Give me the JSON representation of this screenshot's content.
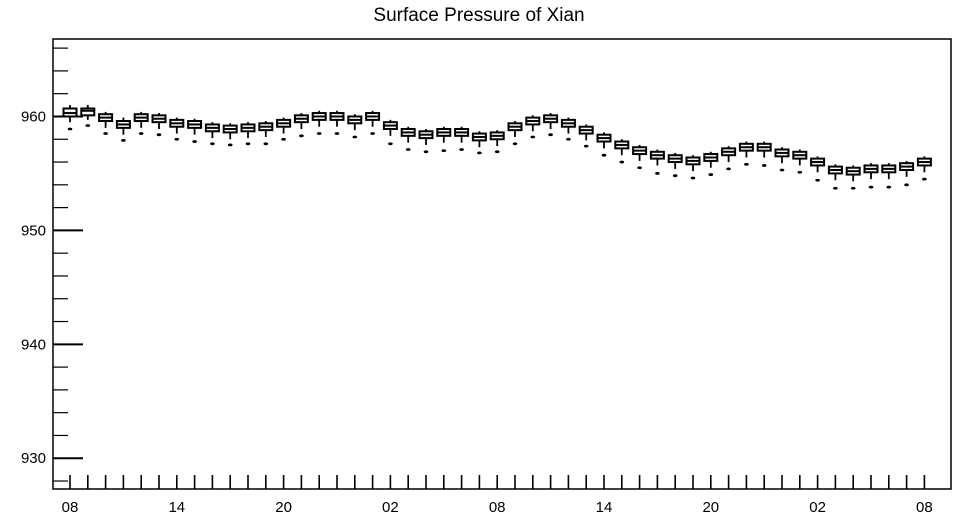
{
  "chart_data": {
    "type": "box",
    "title": "Surface Pressure of Xian",
    "xlabel": "",
    "ylabel": "",
    "ylim": [
      927.3,
      966.8
    ],
    "yticks": [
      930,
      940,
      950,
      960
    ],
    "xtick_labels": [
      {
        "index": 0,
        "label": "08"
      },
      {
        "index": 6,
        "label": "14"
      },
      {
        "index": 12,
        "label": "20"
      },
      {
        "index": 18,
        "label": "02"
      },
      {
        "index": 24,
        "label": "08"
      },
      {
        "index": 30,
        "label": "14"
      },
      {
        "index": 36,
        "label": "20"
      },
      {
        "index": 42,
        "label": "02"
      },
      {
        "index": 48,
        "label": "08"
      }
    ],
    "grid": false,
    "color": "#000000",
    "series": [
      {
        "x": 0,
        "median": 960.3,
        "q1": 960.0,
        "q3": 960.7,
        "whisker_low": 959.5,
        "whisker_high": 961.0,
        "outlier": 958.9
      },
      {
        "x": 1,
        "median": 960.5,
        "q1": 960.1,
        "q3": 960.7,
        "whisker_low": 959.7,
        "whisker_high": 961.0,
        "outlier": 959.2
      },
      {
        "x": 2,
        "median": 959.9,
        "q1": 959.6,
        "q3": 960.2,
        "whisker_low": 959.0,
        "whisker_high": 960.4,
        "outlier": 958.5
      },
      {
        "x": 3,
        "median": 959.3,
        "q1": 959.0,
        "q3": 959.6,
        "whisker_low": 958.4,
        "whisker_high": 959.9,
        "outlier": 957.9
      },
      {
        "x": 4,
        "median": 959.9,
        "q1": 959.6,
        "q3": 960.2,
        "whisker_low": 959.0,
        "whisker_high": 960.4,
        "outlier": 958.5
      },
      {
        "x": 5,
        "median": 959.8,
        "q1": 959.5,
        "q3": 960.1,
        "whisker_low": 958.9,
        "whisker_high": 960.3,
        "outlier": 958.4
      },
      {
        "x": 6,
        "median": 959.4,
        "q1": 959.1,
        "q3": 959.7,
        "whisker_low": 958.5,
        "whisker_high": 959.9,
        "outlier": 958.0
      },
      {
        "x": 7,
        "median": 959.3,
        "q1": 959.0,
        "q3": 959.6,
        "whisker_low": 958.4,
        "whisker_high": 959.8,
        "outlier": 957.8
      },
      {
        "x": 8,
        "median": 959.0,
        "q1": 958.7,
        "q3": 959.3,
        "whisker_low": 958.1,
        "whisker_high": 959.5,
        "outlier": 957.6
      },
      {
        "x": 9,
        "median": 958.9,
        "q1": 958.6,
        "q3": 959.2,
        "whisker_low": 958.0,
        "whisker_high": 959.4,
        "outlier": 957.5
      },
      {
        "x": 10,
        "median": 959.0,
        "q1": 958.7,
        "q3": 959.3,
        "whisker_low": 958.1,
        "whisker_high": 959.5,
        "outlier": 957.6
      },
      {
        "x": 11,
        "median": 959.1,
        "q1": 958.8,
        "q3": 959.4,
        "whisker_low": 958.2,
        "whisker_high": 959.6,
        "outlier": 957.6
      },
      {
        "x": 12,
        "median": 959.4,
        "q1": 959.1,
        "q3": 959.7,
        "whisker_low": 958.5,
        "whisker_high": 959.9,
        "outlier": 958.0
      },
      {
        "x": 13,
        "median": 959.8,
        "q1": 959.5,
        "q3": 960.1,
        "whisker_low": 958.9,
        "whisker_high": 960.3,
        "outlier": 958.3
      },
      {
        "x": 14,
        "median": 960.0,
        "q1": 959.7,
        "q3": 960.3,
        "whisker_low": 959.1,
        "whisker_high": 960.5,
        "outlier": 958.5
      },
      {
        "x": 15,
        "median": 960.0,
        "q1": 959.7,
        "q3": 960.3,
        "whisker_low": 959.1,
        "whisker_high": 960.5,
        "outlier": 958.5
      },
      {
        "x": 16,
        "median": 959.7,
        "q1": 959.4,
        "q3": 960.0,
        "whisker_low": 958.8,
        "whisker_high": 960.2,
        "outlier": 958.2
      },
      {
        "x": 17,
        "median": 960.0,
        "q1": 959.7,
        "q3": 960.3,
        "whisker_low": 959.1,
        "whisker_high": 960.5,
        "outlier": 958.5
      },
      {
        "x": 18,
        "median": 959.2,
        "q1": 958.9,
        "q3": 959.5,
        "whisker_low": 958.3,
        "whisker_high": 959.7,
        "outlier": 957.6
      },
      {
        "x": 19,
        "median": 958.6,
        "q1": 958.3,
        "q3": 958.9,
        "whisker_low": 957.7,
        "whisker_high": 959.1,
        "outlier": 957.1
      },
      {
        "x": 20,
        "median": 958.4,
        "q1": 958.1,
        "q3": 958.7,
        "whisker_low": 957.5,
        "whisker_high": 958.9,
        "outlier": 956.9
      },
      {
        "x": 21,
        "median": 958.6,
        "q1": 958.3,
        "q3": 958.9,
        "whisker_low": 957.7,
        "whisker_high": 959.1,
        "outlier": 957.0
      },
      {
        "x": 22,
        "median": 958.6,
        "q1": 958.3,
        "q3": 958.9,
        "whisker_low": 957.7,
        "whisker_high": 959.1,
        "outlier": 957.1
      },
      {
        "x": 23,
        "median": 958.2,
        "q1": 957.9,
        "q3": 958.5,
        "whisker_low": 957.3,
        "whisker_high": 958.7,
        "outlier": 956.8
      },
      {
        "x": 24,
        "median": 958.3,
        "q1": 958.0,
        "q3": 958.6,
        "whisker_low": 957.4,
        "whisker_high": 958.8,
        "outlier": 956.9
      },
      {
        "x": 25,
        "median": 959.1,
        "q1": 958.8,
        "q3": 959.4,
        "whisker_low": 958.2,
        "whisker_high": 959.6,
        "outlier": 957.6
      },
      {
        "x": 26,
        "median": 959.6,
        "q1": 959.3,
        "q3": 959.9,
        "whisker_low": 958.7,
        "whisker_high": 960.1,
        "outlier": 958.2
      },
      {
        "x": 27,
        "median": 959.8,
        "q1": 959.5,
        "q3": 960.1,
        "whisker_low": 958.9,
        "whisker_high": 960.3,
        "outlier": 958.4
      },
      {
        "x": 28,
        "median": 959.4,
        "q1": 959.1,
        "q3": 959.7,
        "whisker_low": 958.5,
        "whisker_high": 959.9,
        "outlier": 958.0
      },
      {
        "x": 29,
        "median": 958.8,
        "q1": 958.5,
        "q3": 959.1,
        "whisker_low": 957.9,
        "whisker_high": 959.3,
        "outlier": 957.4
      },
      {
        "x": 30,
        "median": 958.1,
        "q1": 957.8,
        "q3": 958.4,
        "whisker_low": 957.2,
        "whisker_high": 958.6,
        "outlier": 956.6
      },
      {
        "x": 31,
        "median": 957.5,
        "q1": 957.2,
        "q3": 957.8,
        "whisker_low": 956.6,
        "whisker_high": 958.0,
        "outlier": 956.0
      },
      {
        "x": 32,
        "median": 957.0,
        "q1": 956.7,
        "q3": 957.3,
        "whisker_low": 956.1,
        "whisker_high": 957.5,
        "outlier": 955.5
      },
      {
        "x": 33,
        "median": 956.6,
        "q1": 956.3,
        "q3": 956.9,
        "whisker_low": 955.7,
        "whisker_high": 957.1,
        "outlier": 955.0
      },
      {
        "x": 34,
        "median": 956.3,
        "q1": 956.0,
        "q3": 956.6,
        "whisker_low": 955.4,
        "whisker_high": 956.8,
        "outlier": 954.8
      },
      {
        "x": 35,
        "median": 956.1,
        "q1": 955.8,
        "q3": 956.4,
        "whisker_low": 955.2,
        "whisker_high": 956.6,
        "outlier": 954.6
      },
      {
        "x": 36,
        "median": 956.4,
        "q1": 956.1,
        "q3": 956.7,
        "whisker_low": 955.5,
        "whisker_high": 956.9,
        "outlier": 954.9
      },
      {
        "x": 37,
        "median": 956.9,
        "q1": 956.6,
        "q3": 957.2,
        "whisker_low": 956.0,
        "whisker_high": 957.4,
        "outlier": 955.4
      },
      {
        "x": 38,
        "median": 957.3,
        "q1": 957.0,
        "q3": 957.6,
        "whisker_low": 956.4,
        "whisker_high": 957.8,
        "outlier": 955.8
      },
      {
        "x": 39,
        "median": 957.3,
        "q1": 957.0,
        "q3": 957.6,
        "whisker_low": 956.4,
        "whisker_high": 957.8,
        "outlier": 955.7
      },
      {
        "x": 40,
        "median": 956.8,
        "q1": 956.5,
        "q3": 957.1,
        "whisker_low": 955.9,
        "whisker_high": 957.3,
        "outlier": 955.3
      },
      {
        "x": 41,
        "median": 956.6,
        "q1": 956.3,
        "q3": 956.9,
        "whisker_low": 955.7,
        "whisker_high": 957.1,
        "outlier": 955.1
      },
      {
        "x": 42,
        "median": 956.0,
        "q1": 955.7,
        "q3": 956.3,
        "whisker_low": 955.1,
        "whisker_high": 956.5,
        "outlier": 954.4
      },
      {
        "x": 43,
        "median": 955.3,
        "q1": 955.0,
        "q3": 955.6,
        "whisker_low": 954.4,
        "whisker_high": 955.8,
        "outlier": 953.7
      },
      {
        "x": 44,
        "median": 955.2,
        "q1": 954.9,
        "q3": 955.5,
        "whisker_low": 954.3,
        "whisker_high": 955.7,
        "outlier": 953.7
      },
      {
        "x": 45,
        "median": 955.4,
        "q1": 955.1,
        "q3": 955.7,
        "whisker_low": 954.5,
        "whisker_high": 955.9,
        "outlier": 953.8
      },
      {
        "x": 46,
        "median": 955.4,
        "q1": 955.1,
        "q3": 955.7,
        "whisker_low": 954.5,
        "whisker_high": 955.9,
        "outlier": 953.8
      },
      {
        "x": 47,
        "median": 955.6,
        "q1": 955.3,
        "q3": 955.9,
        "whisker_low": 954.7,
        "whisker_high": 956.1,
        "outlier": 954.0
      },
      {
        "x": 48,
        "median": 956.0,
        "q1": 955.7,
        "q3": 956.3,
        "whisker_low": 955.1,
        "whisker_high": 956.5,
        "outlier": 954.5
      }
    ]
  }
}
